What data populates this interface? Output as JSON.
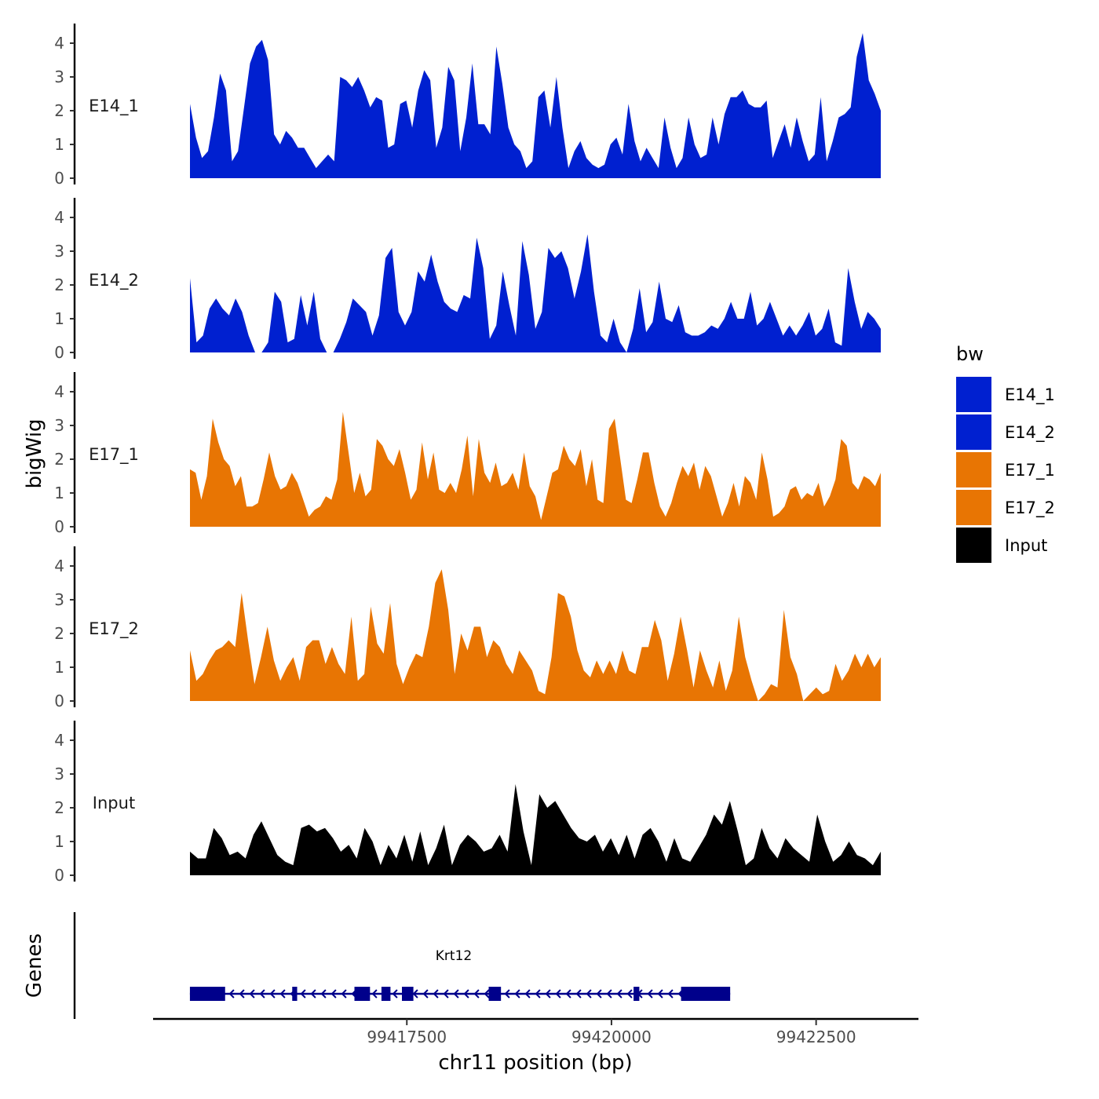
{
  "chart_data": {
    "type": "area",
    "xlabel": "chr11 position (bp)",
    "ylabel": "bigWig",
    "genes_label": "Genes",
    "xlim": [
      99414400,
      99423750
    ],
    "ylim": [
      0,
      4.4
    ],
    "yticks": [
      "0",
      "1",
      "2",
      "3",
      "4"
    ],
    "xticks": [
      {
        "value": 99417500,
        "label": "99417500"
      },
      {
        "value": 99420000,
        "label": "99420000"
      },
      {
        "value": 99422500,
        "label": "99422500"
      }
    ],
    "legend": {
      "title": "bw",
      "entries": [
        {
          "label": "E14_1",
          "color": "#0020D0"
        },
        {
          "label": "E14_2",
          "color": "#0020D0"
        },
        {
          "label": "E17_1",
          "color": "#E87503"
        },
        {
          "label": "E17_2",
          "color": "#E87503"
        },
        {
          "label": "Input",
          "color": "#000000"
        }
      ]
    },
    "series": [
      {
        "name": "E14_1",
        "color": "#0020D0",
        "values": [
          2.2,
          1.2,
          0.6,
          0.8,
          1.8,
          3.1,
          2.6,
          0.5,
          0.8,
          2.1,
          3.4,
          3.9,
          4.1,
          3.5,
          1.3,
          1.0,
          1.4,
          1.2,
          0.9,
          0.9,
          0.6,
          0.3,
          0.5,
          0.7,
          0.5,
          3.0,
          2.9,
          2.7,
          3.0,
          2.6,
          2.1,
          2.4,
          2.3,
          0.9,
          1.0,
          2.2,
          2.3,
          1.5,
          2.6,
          3.2,
          2.9,
          0.9,
          1.5,
          3.3,
          2.9,
          0.8,
          1.8,
          3.4,
          1.6,
          1.6,
          1.3,
          3.9,
          2.8,
          1.5,
          1.0,
          0.8,
          0.3,
          0.5,
          2.4,
          2.6,
          1.5,
          3.0,
          1.5,
          0.3,
          0.8,
          1.1,
          0.6,
          0.4,
          0.3,
          0.4,
          1.0,
          1.2,
          0.7,
          2.2,
          1.1,
          0.5,
          0.9,
          0.6,
          0.3,
          1.8,
          0.9,
          0.3,
          0.6,
          1.8,
          1.0,
          0.6,
          0.7,
          1.8,
          1.0,
          1.9,
          2.4,
          2.4,
          2.6,
          2.2,
          2.1,
          2.1,
          2.3,
          0.6,
          1.1,
          1.6,
          0.9,
          1.8,
          1.1,
          0.5,
          0.7,
          2.4,
          0.5,
          1.1,
          1.8,
          1.9,
          2.1,
          3.6,
          4.3,
          2.9,
          2.5,
          2.0
        ]
      },
      {
        "name": "E14_2",
        "color": "#0020D0",
        "values": [
          2.2,
          0.3,
          0.5,
          1.3,
          1.6,
          1.3,
          1.1,
          1.6,
          1.2,
          0.5,
          0.0,
          0.0,
          0.3,
          1.8,
          1.5,
          0.3,
          0.4,
          1.7,
          0.8,
          1.8,
          0.4,
          0.0,
          0.0,
          0.4,
          0.9,
          1.6,
          1.4,
          1.2,
          0.5,
          1.1,
          2.8,
          3.1,
          1.2,
          0.8,
          1.2,
          2.4,
          2.1,
          2.9,
          2.1,
          1.5,
          1.3,
          1.2,
          1.7,
          1.6,
          3.4,
          2.5,
          0.4,
          0.8,
          2.4,
          1.4,
          0.5,
          3.3,
          2.3,
          0.7,
          1.2,
          3.1,
          2.8,
          3.0,
          2.5,
          1.6,
          2.4,
          3.5,
          1.8,
          0.5,
          0.3,
          1.0,
          0.3,
          0.0,
          0.7,
          1.9,
          0.6,
          0.9,
          2.1,
          1.0,
          0.9,
          1.4,
          0.6,
          0.5,
          0.5,
          0.6,
          0.8,
          0.7,
          1.0,
          1.5,
          1.0,
          1.0,
          1.8,
          0.8,
          1.0,
          1.5,
          1.0,
          0.5,
          0.8,
          0.5,
          0.8,
          1.2,
          0.5,
          0.7,
          1.3,
          0.3,
          0.2,
          2.5,
          1.5,
          0.7,
          1.2,
          1.0,
          0.7
        ]
      },
      {
        "name": "E17_1",
        "color": "#E87503",
        "values": [
          1.7,
          1.6,
          0.8,
          1.5,
          3.2,
          2.5,
          2.0,
          1.8,
          1.2,
          1.5,
          0.6,
          0.6,
          0.7,
          1.4,
          2.2,
          1.5,
          1.1,
          1.2,
          1.6,
          1.3,
          0.8,
          0.3,
          0.5,
          0.6,
          0.9,
          0.8,
          1.4,
          3.4,
          2.2,
          1.0,
          1.6,
          0.9,
          1.1,
          2.6,
          2.4,
          2.0,
          1.8,
          2.3,
          1.6,
          0.8,
          1.1,
          2.5,
          1.4,
          2.2,
          1.1,
          1.0,
          1.3,
          1.0,
          1.7,
          2.7,
          0.9,
          2.6,
          1.6,
          1.3,
          1.9,
          1.2,
          1.3,
          1.6,
          1.1,
          2.2,
          1.2,
          0.9,
          0.2,
          0.9,
          1.6,
          1.7,
          2.4,
          2.0,
          1.8,
          2.3,
          1.2,
          2.0,
          0.8,
          0.7,
          2.9,
          3.2,
          2.0,
          0.8,
          0.7,
          1.4,
          2.2,
          2.2,
          1.3,
          0.6,
          0.3,
          0.7,
          1.3,
          1.8,
          1.5,
          1.9,
          1.1,
          1.8,
          1.5,
          0.9,
          0.3,
          0.7,
          1.3,
          0.6,
          1.5,
          1.3,
          0.8,
          2.2,
          1.4,
          0.3,
          0.4,
          0.6,
          1.1,
          1.2,
          0.8,
          1.0,
          0.9,
          1.3,
          0.6,
          0.9,
          1.4,
          2.6,
          2.4,
          1.3,
          1.1,
          1.5,
          1.4,
          1.2,
          1.6
        ]
      },
      {
        "name": "E17_2",
        "color": "#E87503",
        "values": [
          1.5,
          0.6,
          0.8,
          1.2,
          1.5,
          1.6,
          1.8,
          1.6,
          3.2,
          1.8,
          0.5,
          1.3,
          2.2,
          1.2,
          0.6,
          1.0,
          1.3,
          0.6,
          1.6,
          1.8,
          1.8,
          1.1,
          1.6,
          1.1,
          0.8,
          2.5,
          0.6,
          0.8,
          2.8,
          1.7,
          1.4,
          2.9,
          1.1,
          0.5,
          1.0,
          1.4,
          1.3,
          2.2,
          3.5,
          3.9,
          2.7,
          0.8,
          2.0,
          1.5,
          2.2,
          2.2,
          1.3,
          1.8,
          1.6,
          1.1,
          0.8,
          1.5,
          1.2,
          0.9,
          0.3,
          0.2,
          1.3,
          3.2,
          3.1,
          2.5,
          1.5,
          0.9,
          0.7,
          1.2,
          0.8,
          1.2,
          0.8,
          1.5,
          0.9,
          0.8,
          1.6,
          1.6,
          2.4,
          1.8,
          0.6,
          1.4,
          2.5,
          1.5,
          0.4,
          1.5,
          0.9,
          0.4,
          1.2,
          0.3,
          0.9,
          2.5,
          1.3,
          0.6,
          0.0,
          0.2,
          0.5,
          0.4,
          2.7,
          1.3,
          0.8,
          0.0,
          0.2,
          0.4,
          0.2,
          0.3,
          1.1,
          0.6,
          0.9,
          1.4,
          1.0,
          1.4,
          1.0,
          1.3
        ]
      },
      {
        "name": "Input",
        "color": "#000000",
        "values": [
          0.7,
          0.5,
          0.5,
          1.4,
          1.1,
          0.6,
          0.7,
          0.5,
          1.2,
          1.6,
          1.1,
          0.6,
          0.4,
          0.3,
          1.4,
          1.5,
          1.3,
          1.4,
          1.1,
          0.7,
          0.9,
          0.5,
          1.4,
          1.0,
          0.3,
          0.9,
          0.5,
          1.2,
          0.4,
          1.3,
          0.3,
          0.8,
          1.5,
          0.3,
          0.9,
          1.2,
          1.0,
          0.7,
          0.8,
          1.2,
          0.7,
          2.7,
          1.3,
          0.3,
          2.4,
          2.0,
          2.2,
          1.8,
          1.4,
          1.1,
          1.0,
          1.2,
          0.7,
          1.1,
          0.6,
          1.2,
          0.5,
          1.2,
          1.4,
          1.0,
          0.4,
          1.1,
          0.5,
          0.4,
          0.8,
          1.2,
          1.8,
          1.5,
          2.2,
          1.3,
          0.3,
          0.5,
          1.4,
          0.8,
          0.5,
          1.1,
          0.8,
          0.6,
          0.4,
          1.8,
          1.0,
          0.4,
          0.6,
          1.0,
          0.6,
          0.5,
          0.3,
          0.7
        ]
      }
    ],
    "gene_track": {
      "name": "Krt12",
      "strand": "-",
      "start": 99414850,
      "end": 99421450,
      "exons": [
        [
          99414850,
          99415280
        ],
        [
          99416100,
          99416160
        ],
        [
          99416860,
          99417050
        ],
        [
          99417190,
          99417300
        ],
        [
          99417440,
          99417580
        ],
        [
          99418500,
          99418650
        ],
        [
          99420270,
          99420340
        ],
        [
          99420850,
          99421450
        ]
      ]
    }
  }
}
